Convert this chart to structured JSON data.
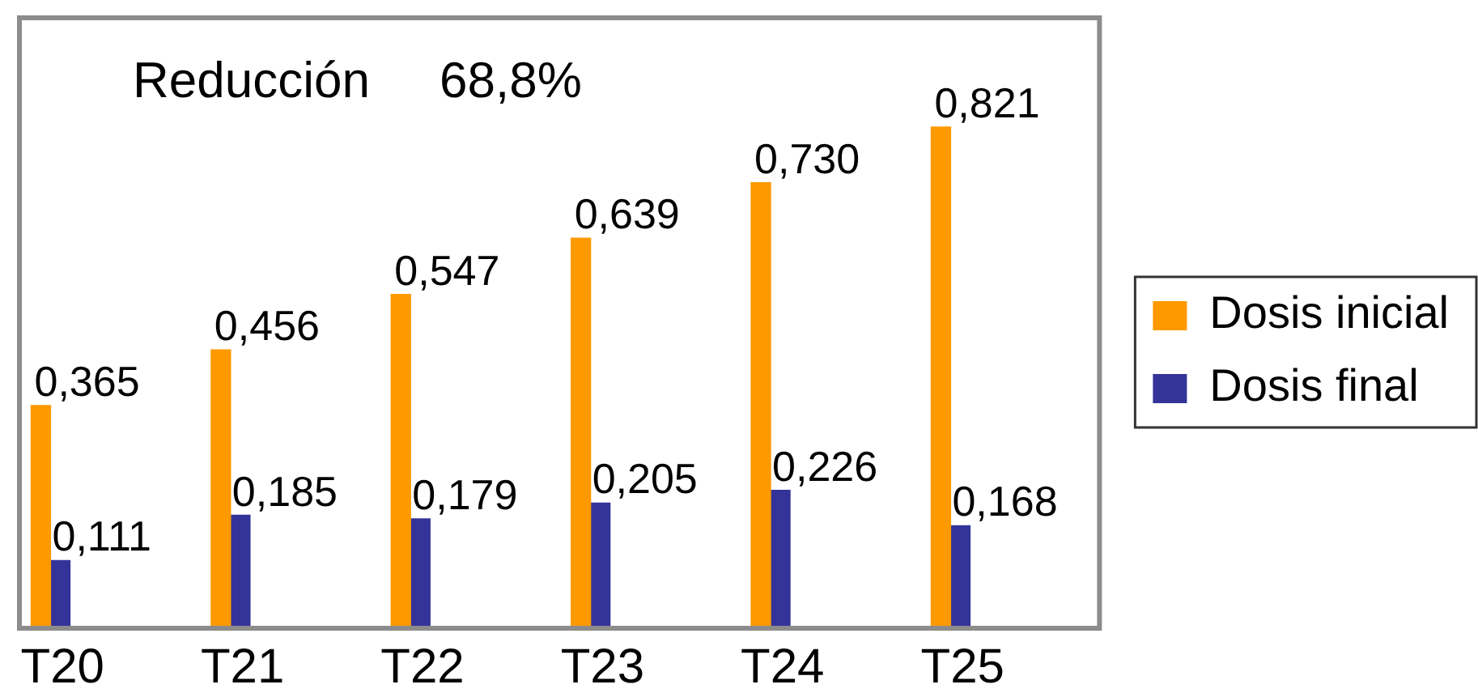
{
  "chart_data": {
    "type": "bar",
    "categories": [
      "T20",
      "T21",
      "T22",
      "T23",
      "T24",
      "T25"
    ],
    "series": [
      {
        "name": "Dosis inicial",
        "color": "#ff9900",
        "values": [
          0.365,
          0.456,
          0.547,
          0.639,
          0.73,
          0.821
        ],
        "value_labels": [
          "0,365",
          "0,456",
          "0,547",
          "0,639",
          "0,730",
          "0,821"
        ]
      },
      {
        "name": "Dosis final",
        "color": "#333399",
        "values": [
          0.111,
          0.185,
          0.179,
          0.205,
          0.226,
          0.168
        ],
        "value_labels": [
          "0,111",
          "0,185",
          "0,179",
          "0,205",
          "0,226",
          "0,168"
        ]
      }
    ],
    "annotations": [
      "Reducción 68,8%"
    ],
    "legend": "right",
    "tick_labels": "x"
  }
}
